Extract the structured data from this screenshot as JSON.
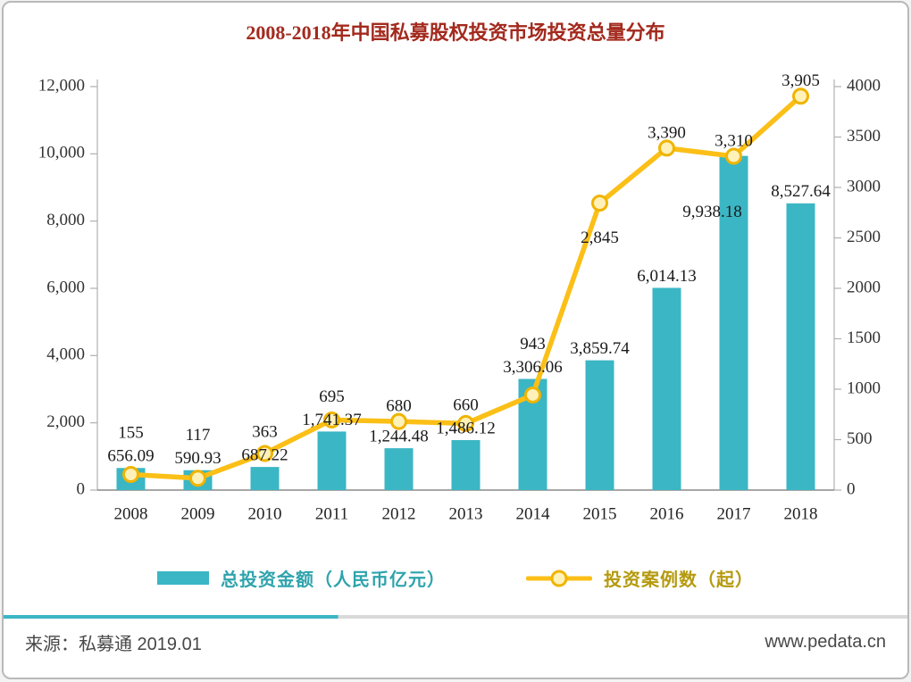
{
  "title": "2008-2018年中国私募股权投资市场投资总量分布",
  "chart_data": {
    "type": "bar+line",
    "categories": [
      "2008",
      "2009",
      "2010",
      "2011",
      "2012",
      "2013",
      "2014",
      "2015",
      "2016",
      "2017",
      "2018"
    ],
    "series": [
      {
        "name": "总投资金额（人民币亿元）",
        "type": "bar",
        "axis": "left",
        "values": [
          656.09,
          590.93,
          687.22,
          1741.37,
          1244.48,
          1486.12,
          3306.06,
          3859.74,
          6014.13,
          9938.18,
          8527.64
        ],
        "labels": [
          "656.09",
          "590.93",
          "687.22",
          "1,741.37",
          "1,244.48",
          "1,486.12",
          "3,306.06",
          "3,859.74",
          "6,014.13",
          "9,938.18",
          "8,527.64"
        ],
        "color": "#3bb6c4"
      },
      {
        "name": "投资案例数（起）",
        "type": "line",
        "axis": "right",
        "values": [
          155,
          117,
          363,
          695,
          680,
          660,
          943,
          2845,
          3390,
          3310,
          3905
        ],
        "labels": [
          "155",
          "117",
          "363",
          "695",
          "680",
          "660",
          "943",
          "2,845",
          "3,390",
          "3,310",
          "3,905"
        ],
        "color": "#fbbf17"
      }
    ],
    "left_axis": {
      "min": 0,
      "max": 12000,
      "step": 2000,
      "tick_labels": [
        "0",
        "2,000",
        "4,000",
        "6,000",
        "8,000",
        "10,000",
        "12,000"
      ]
    },
    "right_axis": {
      "min": 0,
      "max": 4000,
      "step": 500,
      "tick_labels": [
        "0",
        "500",
        "1000",
        "1500",
        "2000",
        "2500",
        "3000",
        "3500",
        "4000"
      ]
    },
    "grid": "off",
    "legend_position": "bottom"
  },
  "legend": {
    "bar_label": "总投资金额（人民币亿元）",
    "line_label": "投资案例数（起）"
  },
  "footer": {
    "source": "来源：私募通 2019.01",
    "website": "www.pedata.cn"
  },
  "colors": {
    "bar": "#3bb6c4",
    "line": "#fbbf17",
    "marker_fill": "#fff1b8",
    "marker_stroke": "#f0b400",
    "title": "#a32a1e",
    "legend_bar_text": "#2fa3ad",
    "legend_line_text": "#b59a0e",
    "axis": "#b0b0b0",
    "baseline": "#8a8a8a",
    "label_text": "#1a1a1a",
    "tick_text": "#333333",
    "divider_teal": "#3bb6c4",
    "divider_gray": "#d9d9d9"
  }
}
